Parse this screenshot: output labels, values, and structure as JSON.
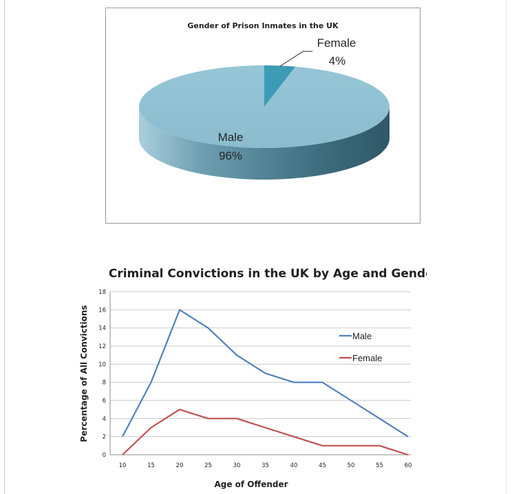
{
  "chart_data": [
    {
      "type": "pie",
      "title": "Gender of Prison Inmates in the UK",
      "slices": [
        {
          "label": "Male",
          "value": 96,
          "value_label": "96%",
          "color": "#8fc1d3"
        },
        {
          "label": "Female",
          "value": 4,
          "value_label": "4%",
          "color": "#3c9bb5"
        }
      ],
      "style": "3d"
    },
    {
      "type": "line",
      "title": "Criminal Convictions in the UK by Age and Gender",
      "xlabel": "Age of Offender",
      "ylabel": "Percentage of All Convictions",
      "x": [
        10,
        15,
        20,
        25,
        30,
        35,
        40,
        45,
        50,
        55,
        60
      ],
      "x_tick_labels": [
        "10",
        "15",
        "20",
        "25",
        "30",
        "35",
        "40",
        "45",
        "50",
        "55",
        "60"
      ],
      "ylim": [
        0,
        18
      ],
      "y_ticks": [
        0,
        2,
        4,
        6,
        8,
        10,
        12,
        14,
        16,
        18
      ],
      "y_tick_labels": [
        "0",
        "2",
        "4",
        "6",
        "8",
        "10",
        "12",
        "14",
        "16",
        "18"
      ],
      "grid": true,
      "legend_position": "right",
      "series": [
        {
          "name": "Male",
          "color": "#4f81bd",
          "values": [
            2,
            8,
            16,
            14,
            11,
            9,
            8,
            8,
            6,
            4,
            2
          ]
        },
        {
          "name": "Female",
          "color": "#c0504d",
          "values": [
            0,
            3,
            5,
            4,
            4,
            3,
            2,
            1,
            1,
            1,
            0
          ]
        }
      ]
    }
  ]
}
